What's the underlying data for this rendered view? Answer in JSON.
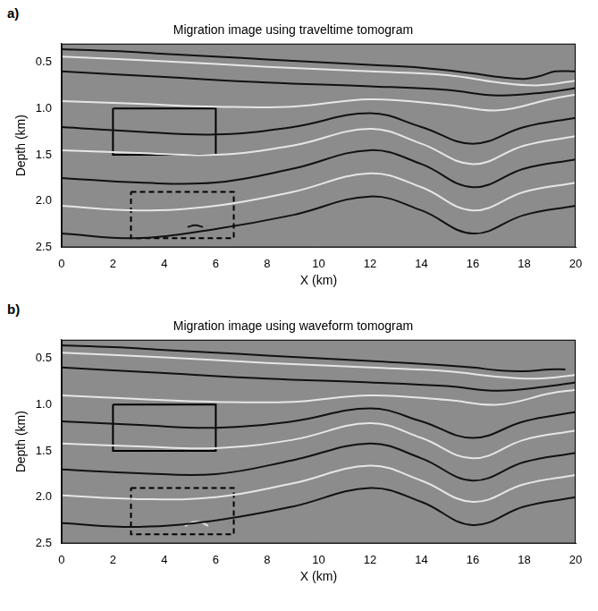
{
  "chart_data": [
    {
      "type": "line",
      "panel": "a)",
      "title": "Migration image using traveltime tomogram",
      "x_label": "X (km)",
      "y_label": "Depth (km)",
      "xlim": [
        0,
        20
      ],
      "xticks": [
        0,
        2,
        4,
        6,
        8,
        10,
        12,
        14,
        16,
        18,
        20
      ],
      "ylim": [
        2.5,
        0.3
      ],
      "yticks": [
        0.5,
        {
          "value": 1,
          "label": "1.0"
        },
        1.5,
        {
          "value": 2,
          "label": "2.0"
        },
        2.5
      ],
      "grid": false,
      "color": "#8c8c8c",
      "reflectors": [
        {
          "color": "#111111",
          "x": [
            0,
            2,
            4,
            6,
            8,
            10,
            12,
            14,
            16,
            17,
            18,
            18.6,
            19.2,
            20
          ],
          "values": [
            0.36,
            0.38,
            0.41,
            0.44,
            0.47,
            0.5,
            0.53,
            0.56,
            0.62,
            0.66,
            0.68,
            0.65,
            0.6,
            0.6
          ]
        },
        {
          "color": "#e6e6e6",
          "x": [
            0,
            4,
            8,
            12,
            15,
            17,
            18.5,
            20
          ],
          "values": [
            0.44,
            0.49,
            0.55,
            0.6,
            0.64,
            0.72,
            0.75,
            0.7
          ]
        },
        {
          "color": "#111111",
          "x": [
            0,
            4,
            8,
            12,
            15,
            17,
            19,
            20
          ],
          "values": [
            0.6,
            0.66,
            0.72,
            0.76,
            0.8,
            0.86,
            0.82,
            0.78
          ]
        },
        {
          "color": "#e6e6e6",
          "x": [
            0,
            3,
            6,
            9,
            12,
            15,
            17,
            19,
            20
          ],
          "values": [
            0.92,
            0.95,
            0.98,
            0.98,
            0.9,
            0.96,
            1.02,
            0.9,
            0.85
          ]
        },
        {
          "color": "#111111",
          "x": [
            0,
            3,
            6,
            9,
            12,
            14,
            16,
            18,
            20
          ],
          "values": [
            1.2,
            1.25,
            1.28,
            1.2,
            1.05,
            1.2,
            1.38,
            1.2,
            1.1
          ]
        },
        {
          "color": "#e6e6e6",
          "x": [
            0,
            3,
            6,
            9,
            12,
            14,
            16,
            18,
            20
          ],
          "values": [
            1.45,
            1.48,
            1.5,
            1.4,
            1.22,
            1.38,
            1.6,
            1.4,
            1.3
          ]
        },
        {
          "color": "#111111",
          "x": [
            0,
            3,
            6,
            9,
            12,
            14,
            16,
            18,
            20
          ],
          "values": [
            1.75,
            1.8,
            1.8,
            1.65,
            1.45,
            1.6,
            1.85,
            1.65,
            1.55
          ]
        },
        {
          "color": "#e6e6e6",
          "x": [
            0,
            3,
            6,
            9,
            12,
            14,
            16,
            18,
            20
          ],
          "values": [
            2.05,
            2.1,
            2.05,
            1.9,
            1.7,
            1.85,
            2.1,
            1.9,
            1.8
          ]
        },
        {
          "color": "#111111",
          "x": [
            0,
            3,
            6,
            9,
            12,
            14,
            16,
            18,
            20
          ],
          "values": [
            2.35,
            2.4,
            2.3,
            2.15,
            1.95,
            2.1,
            2.35,
            2.15,
            2.05
          ]
        },
        {
          "color": "#111111",
          "x": [
            4.9,
            5.2,
            5.5
          ],
          "values": [
            2.28,
            2.26,
            2.28
          ]
        }
      ],
      "boxes": [
        {
          "xlim": [
            2,
            6
          ],
          "ylim": [
            1.0,
            1.5
          ],
          "line_style": "solid"
        },
        {
          "xlim": [
            2.7,
            6.7
          ],
          "ylim": [
            1.9,
            2.4
          ],
          "line_style": "dashed"
        }
      ]
    },
    {
      "type": "line",
      "panel": "b)",
      "title": "Migration image using waveform tomogram",
      "x_label": "X (km)",
      "y_label": "Depth (km)",
      "xlim": [
        0,
        20
      ],
      "xticks": [
        0,
        2,
        4,
        6,
        8,
        10,
        12,
        14,
        16,
        18,
        20
      ],
      "ylim": [
        2.5,
        0.3
      ],
      "yticks": [
        0.5,
        {
          "value": 1,
          "label": "1.0"
        },
        1.5,
        {
          "value": 2,
          "label": "2.0"
        },
        2.5
      ],
      "grid": false,
      "color": "#8c8c8c",
      "reflectors": [
        {
          "color": "#111111",
          "x": [
            0,
            2,
            4,
            6,
            8,
            10,
            12,
            14,
            16,
            17,
            18,
            19,
            19.6
          ],
          "values": [
            0.36,
            0.38,
            0.41,
            0.44,
            0.47,
            0.5,
            0.53,
            0.56,
            0.6,
            0.63,
            0.64,
            0.62,
            0.62
          ]
        },
        {
          "color": "#e6e6e6",
          "x": [
            0,
            4,
            8,
            12,
            15,
            17,
            18.5,
            20
          ],
          "values": [
            0.44,
            0.49,
            0.55,
            0.6,
            0.64,
            0.7,
            0.72,
            0.68
          ]
        },
        {
          "color": "#111111",
          "x": [
            0,
            4,
            8,
            12,
            15,
            17,
            19,
            20
          ],
          "values": [
            0.6,
            0.66,
            0.72,
            0.76,
            0.8,
            0.85,
            0.8,
            0.76
          ]
        },
        {
          "color": "#e6e6e6",
          "x": [
            0,
            3,
            6,
            9,
            12,
            15,
            17,
            19,
            20
          ],
          "values": [
            0.9,
            0.94,
            0.97,
            0.97,
            0.9,
            0.95,
            1.0,
            0.88,
            0.84
          ]
        },
        {
          "color": "#111111",
          "x": [
            0,
            3,
            6,
            9,
            12,
            14,
            16,
            18,
            20
          ],
          "values": [
            1.18,
            1.22,
            1.25,
            1.18,
            1.04,
            1.18,
            1.36,
            1.18,
            1.08
          ]
        },
        {
          "color": "#e6e6e6",
          "x": [
            0,
            3,
            6,
            9,
            12,
            14,
            16,
            18,
            20
          ],
          "values": [
            1.42,
            1.45,
            1.47,
            1.38,
            1.2,
            1.36,
            1.58,
            1.38,
            1.28
          ]
        },
        {
          "color": "#111111",
          "x": [
            0,
            3,
            6,
            9,
            12,
            14,
            16,
            18,
            20
          ],
          "values": [
            1.7,
            1.74,
            1.75,
            1.6,
            1.42,
            1.58,
            1.82,
            1.62,
            1.52
          ]
        },
        {
          "color": "#e6e6e6",
          "x": [
            0,
            3,
            6,
            9,
            12,
            14,
            16,
            18,
            20
          ],
          "values": [
            1.98,
            2.02,
            2.0,
            1.85,
            1.66,
            1.82,
            2.05,
            1.86,
            1.76
          ]
        },
        {
          "color": "#111111",
          "x": [
            0,
            3,
            6,
            9,
            12,
            14,
            16,
            18,
            20
          ],
          "values": [
            2.28,
            2.32,
            2.25,
            2.1,
            1.9,
            2.05,
            2.3,
            2.1,
            2.0
          ]
        },
        {
          "color": "#e6e6e6",
          "x": [
            4.8,
            5.1,
            5.4,
            5.7
          ],
          "values": [
            2.31,
            2.27,
            2.27,
            2.31
          ]
        }
      ],
      "boxes": [
        {
          "xlim": [
            2,
            6
          ],
          "ylim": [
            1.0,
            1.5
          ],
          "line_style": "solid"
        },
        {
          "xlim": [
            2.7,
            6.7
          ],
          "ylim": [
            1.9,
            2.4
          ],
          "line_style": "dashed"
        }
      ]
    }
  ]
}
